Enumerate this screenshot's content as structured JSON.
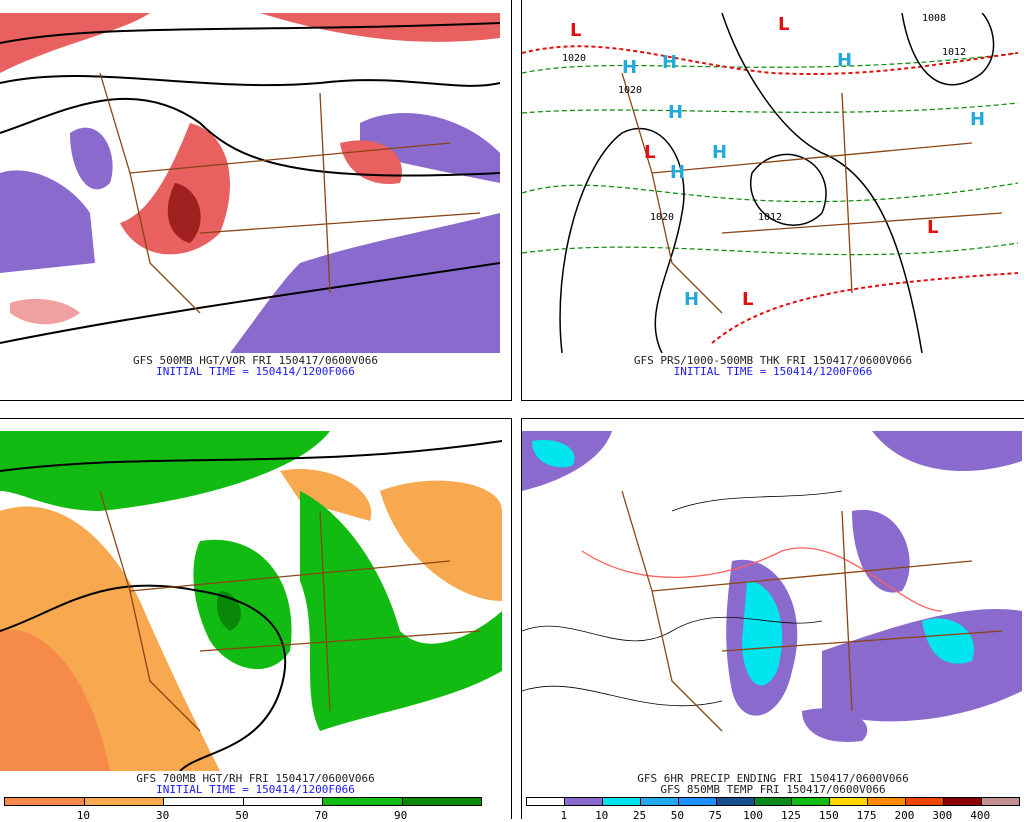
{
  "panels": [
    {
      "caption": "GFS 500MB HGT/VOR FRI 150417/0600V066",
      "initial_time": "INITIAL TIME = 150414/1200F066"
    },
    {
      "caption": "GFS PRS/1000-500MB THK FRI 150417/0600V066",
      "initial_time": "INITIAL TIME = 150414/1200F066",
      "markers": [
        "L",
        "H",
        "H",
        "H",
        "L",
        "H",
        "H",
        "H",
        "L",
        "H",
        "L",
        "L"
      ],
      "contour_labels": [
        "1020",
        "1020",
        "1020",
        "1012",
        "1012",
        "1008"
      ]
    },
    {
      "caption": "GFS 700MB HGT/RH FRI 150417/0600V066",
      "initial_time": "INITIAL TIME = 150414/1200F066",
      "colorbar": {
        "ticks": [
          "10",
          "30",
          "50",
          "70",
          "90"
        ],
        "colors": [
          "#f58a4a",
          "#f8a84e",
          "#ffffff",
          "#ffffff",
          "#11bb11",
          "#0a880a"
        ]
      }
    },
    {
      "caption": "GFS 6HR PRECIP ENDING FRI 150417/0600V066",
      "caption2": "GFS 850MB TEMP FRI 150417/0600V066",
      "colorbar": {
        "ticks": [
          "1",
          "10",
          "25",
          "50",
          "75",
          "100",
          "125",
          "150",
          "175",
          "200",
          "300",
          "400"
        ],
        "colors": [
          "#ffffff",
          "#8a6acc",
          "#00e5ee",
          "#22aaee",
          "#1e90ff",
          "#1a4f8f",
          "#0a8a1a",
          "#11bb11",
          "#ffd700",
          "#ff8c00",
          "#ee4500",
          "#8b0000",
          "#c09090"
        ]
      }
    }
  ]
}
